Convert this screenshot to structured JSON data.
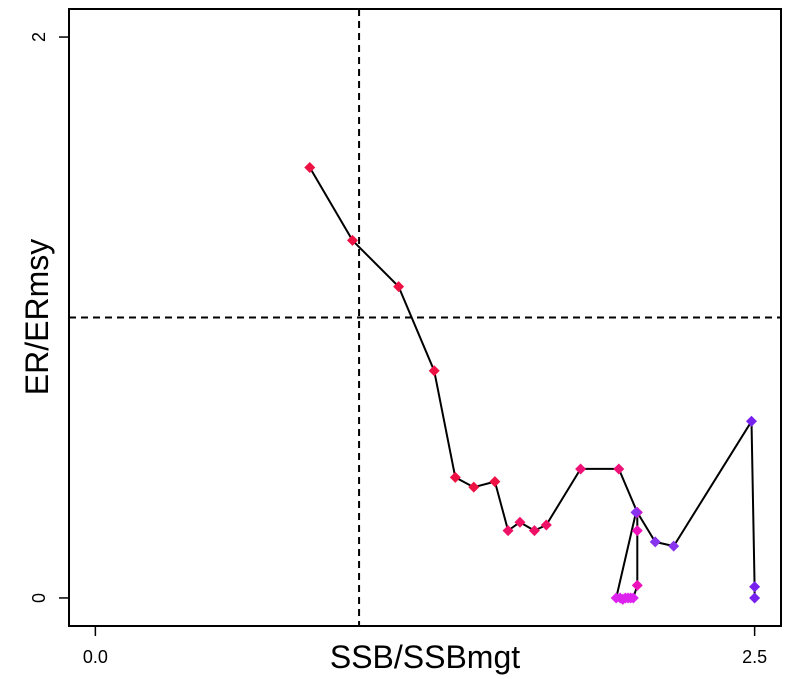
{
  "chart_data": {
    "type": "line",
    "title": "",
    "xlabel": "SSB/SSBmgt",
    "ylabel": "ER/ERmsy",
    "xlim": [
      -0.1,
      2.6
    ],
    "ylim": [
      -0.1,
      2.1
    ],
    "x_ticks": [
      {
        "value": 0,
        "label": "0.0"
      },
      {
        "value": 2.5,
        "label": "2.5"
      }
    ],
    "y_ticks": [
      {
        "value": 0,
        "label": "0"
      },
      {
        "value": 2,
        "label": "2"
      }
    ],
    "reference_lines": {
      "x": 1.0,
      "y": 1.0,
      "style": "dashed"
    },
    "grid": false,
    "series": [
      {
        "x": [
          0.813,
          0.975,
          1.15,
          1.285,
          1.365,
          1.435,
          1.515,
          1.565,
          1.61,
          1.665,
          1.71,
          1.84,
          1.985,
          2.055,
          2.123,
          2.193,
          2.488,
          2.5,
          2.5
        ],
        "y": [
          1.535,
          1.275,
          1.11,
          0.81,
          0.43,
          0.395,
          0.415,
          0.24,
          0.27,
          0.24,
          0.26,
          0.46,
          0.46,
          0.305,
          0.2,
          0.185,
          0.63,
          0.04,
          0.0
        ],
        "colors": [
          "#ee1144",
          "#ee1144",
          "#ee1144",
          "#ee1144",
          "#ee1144",
          "#ee1144",
          "#ee1144",
          "#ee1166",
          "#ee1166",
          "#ee1166",
          "#ee1166",
          "#ee1177",
          "#ee1177",
          "#dd22bb",
          "#8833ee",
          "#8833ee",
          "#7722ee",
          "#7722ee",
          "#7722ee"
        ]
      },
      {
        "x": [
          2.055,
          2.055,
          2.055,
          2.04,
          2.03,
          2.02,
          2.01,
          2.0,
          1.99,
          1.975,
          2.05
        ],
        "y": [
          0.305,
          0.24,
          0.045,
          0.0,
          0.0,
          0.0,
          0.0,
          -0.005,
          0.0,
          0.0,
          0.305
        ],
        "colors": [
          "#dd11cc",
          "#ee11bb",
          "#ee11bb",
          "#dd22ee",
          "#dd22ee",
          "#dd22ee",
          "#dd22ee",
          "#dd22ee",
          "#dd22ee",
          "#dd22ee",
          "#8833ee"
        ]
      }
    ]
  }
}
